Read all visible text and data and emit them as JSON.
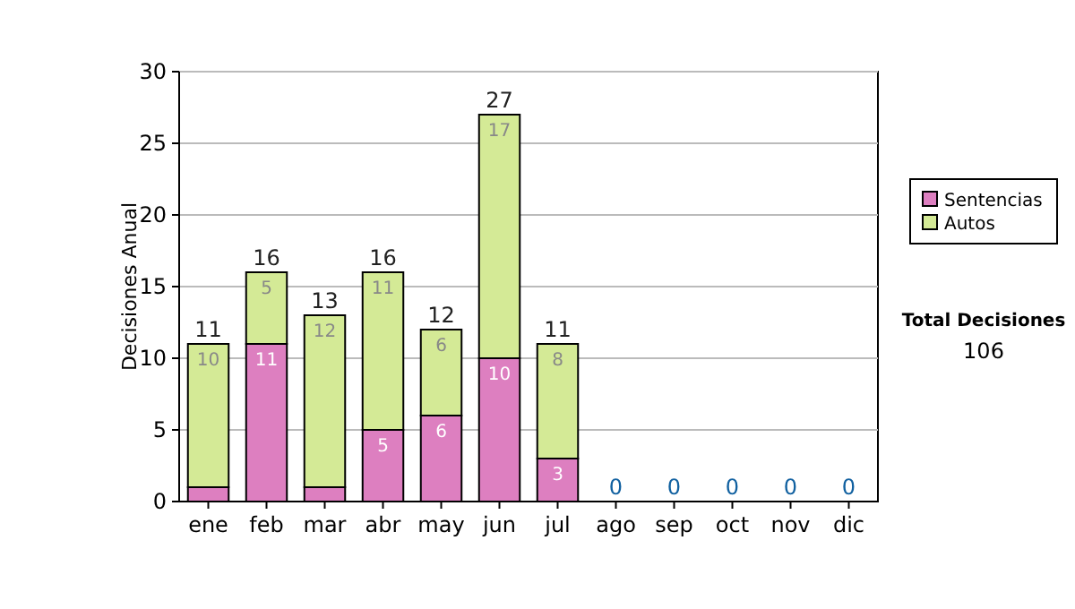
{
  "chart_data": {
    "type": "bar",
    "stacked": true,
    "ylabel": "Decisiones Anual",
    "categories": [
      "ene",
      "feb",
      "mar",
      "abr",
      "may",
      "jun",
      "jul",
      "ago",
      "sep",
      "oct",
      "nov",
      "dic"
    ],
    "series": [
      {
        "name": "Sentencias",
        "color": "#dd7fc0",
        "values": [
          1,
          11,
          1,
          5,
          6,
          10,
          3,
          0,
          0,
          0,
          0,
          0
        ],
        "value_labels": [
          null,
          "11",
          null,
          "5",
          "6",
          "10",
          "3",
          null,
          null,
          null,
          null,
          null
        ]
      },
      {
        "name": "Autos",
        "color": "#d4ea96",
        "values": [
          10,
          5,
          12,
          11,
          6,
          17,
          8,
          0,
          0,
          0,
          0,
          0
        ],
        "value_labels": [
          "10",
          "5",
          "12",
          "11",
          "6",
          "17",
          "8",
          null,
          null,
          null,
          null,
          null
        ]
      }
    ],
    "totals": [
      "11",
      "16",
      "13",
      "16",
      "12",
      "27",
      "11",
      "0",
      "0",
      "0",
      "0",
      "0"
    ],
    "ylim": [
      0,
      30
    ],
    "yticks": [
      0,
      5,
      10,
      15,
      20,
      25,
      30
    ],
    "grid": "y",
    "legend": "right",
    "annotations": [
      "Total Decisiones",
      "106"
    ]
  }
}
